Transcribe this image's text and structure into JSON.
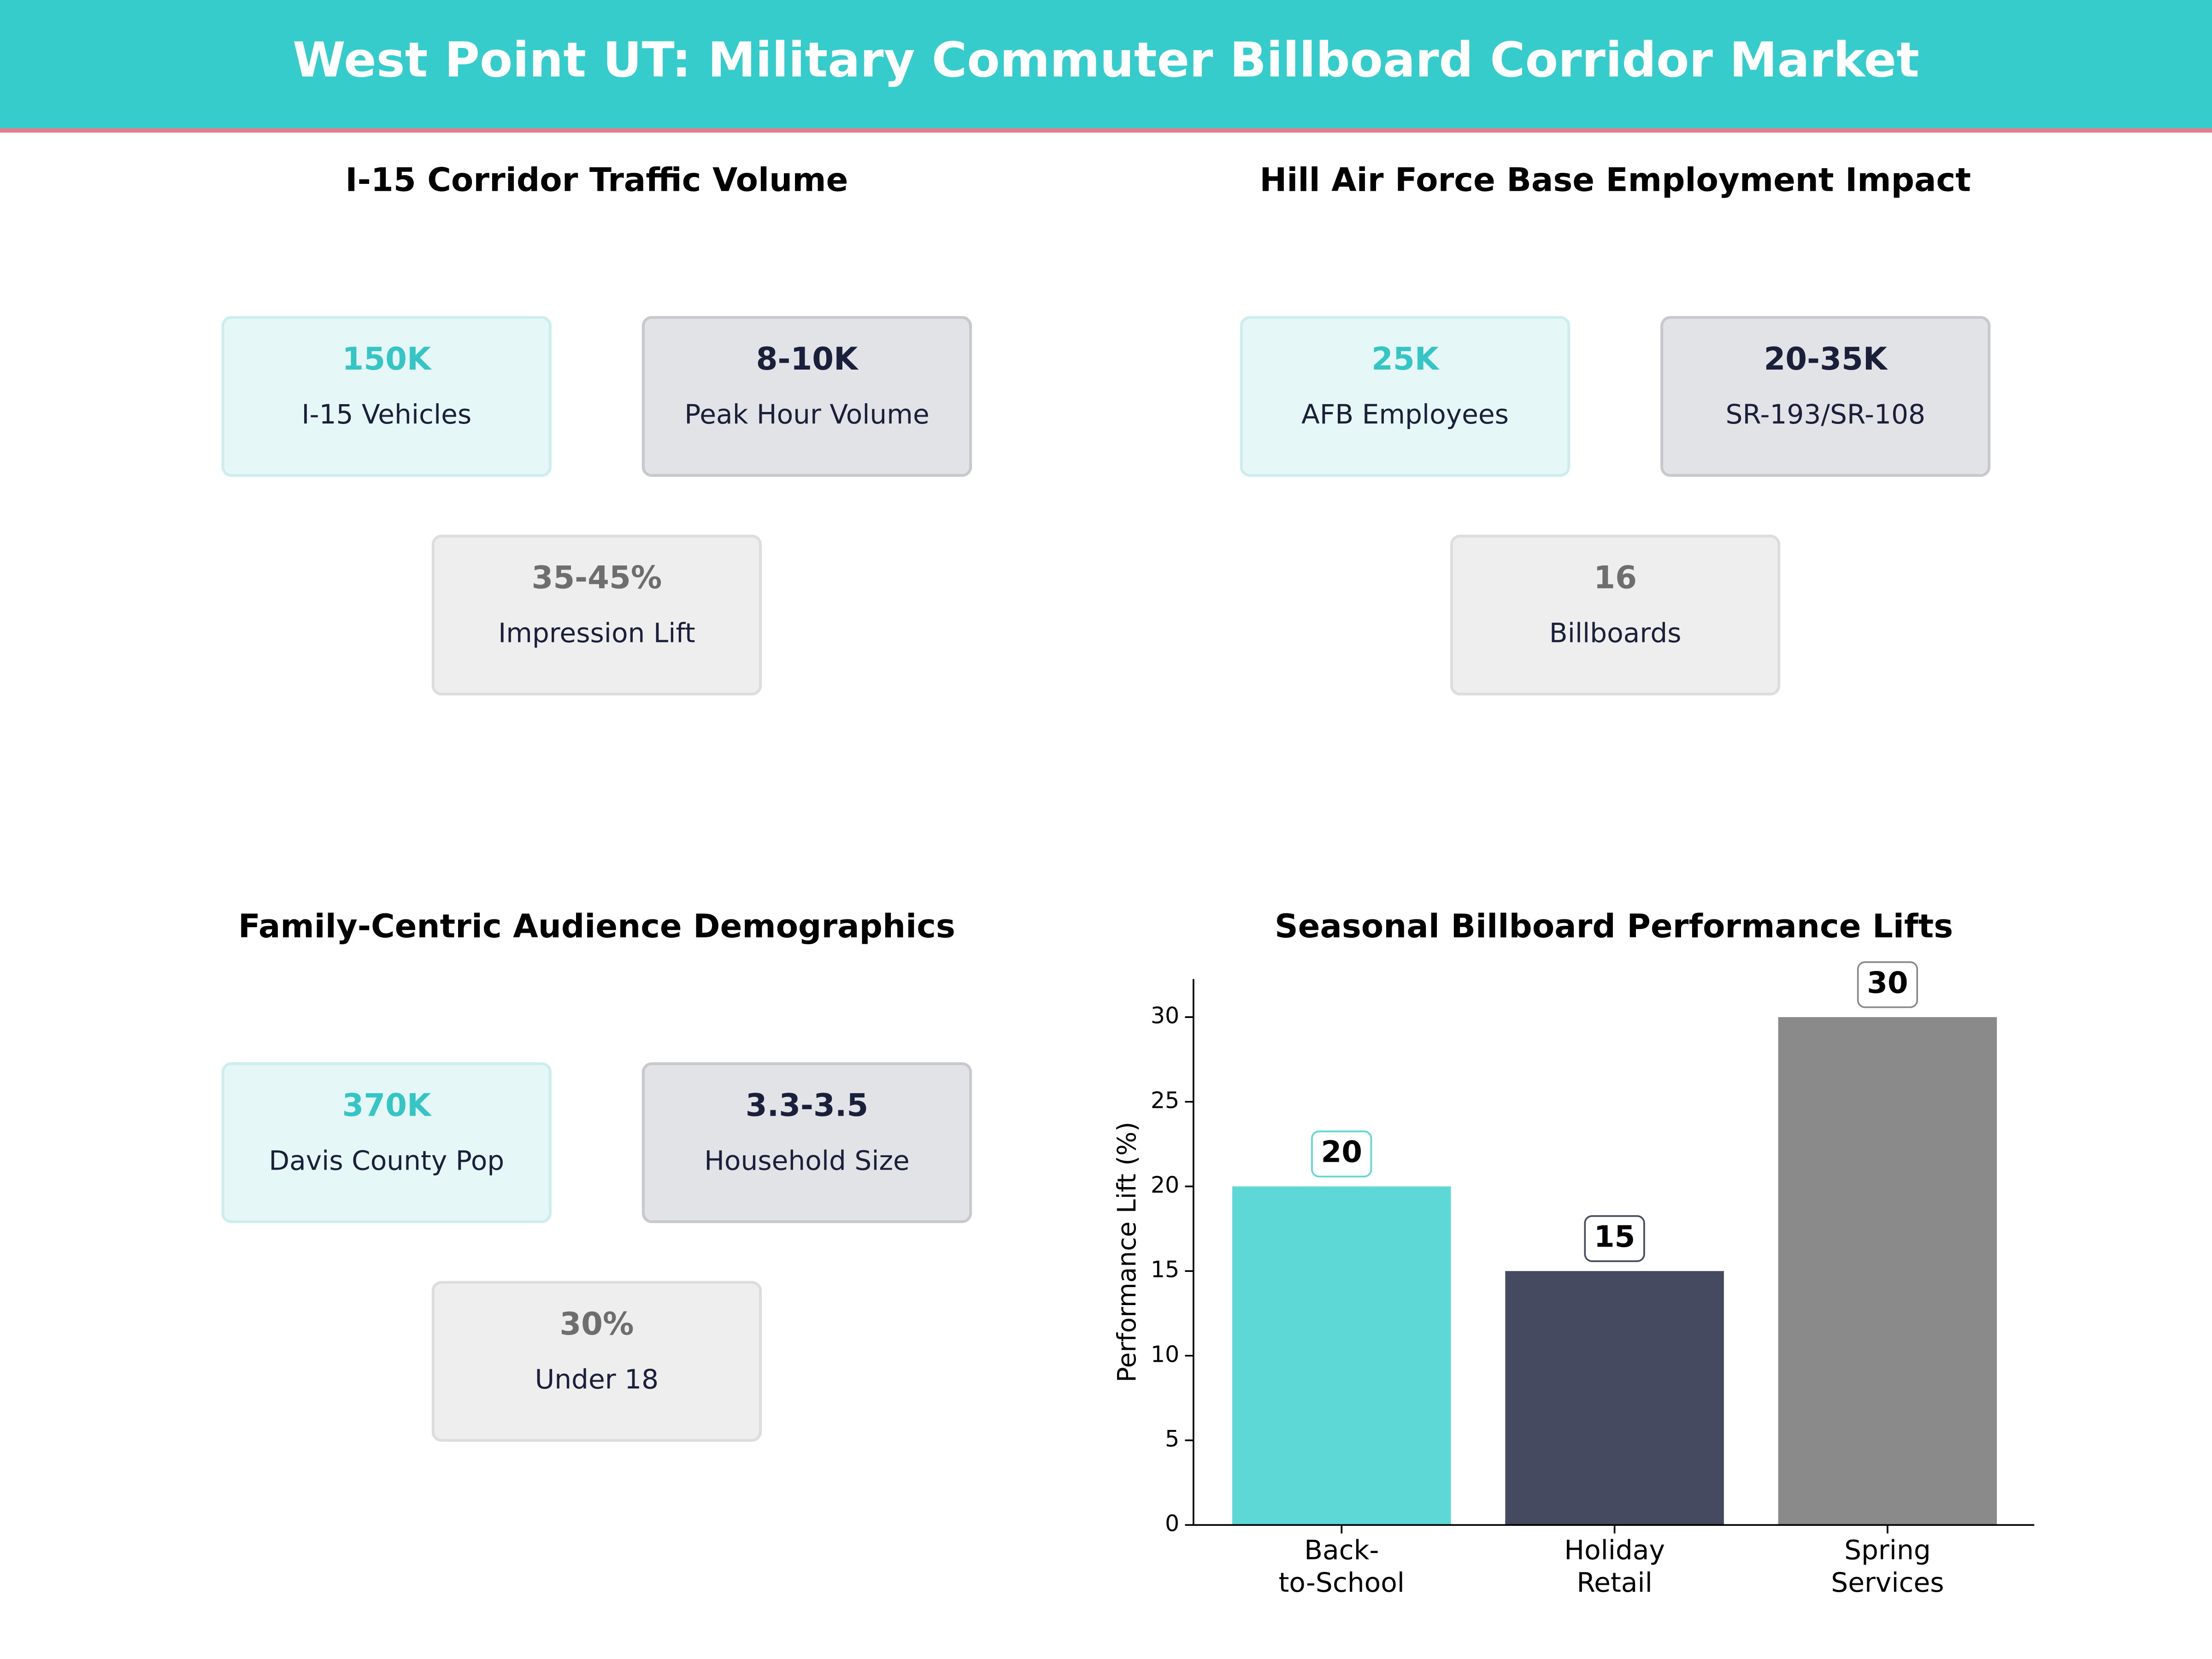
{
  "header": {
    "title": "West Point UT: Military Commuter Billboard Corridor Market"
  },
  "panels": [
    {
      "title": "I-15 Corridor Traffic Volume",
      "cards": [
        {
          "value": "150K",
          "label": "I-15 Vehicles"
        },
        {
          "value": "8-10K",
          "label": "Peak Hour Volume"
        },
        {
          "value": "35-45%",
          "label": "Impression Lift"
        }
      ]
    },
    {
      "title": "Hill Air Force Base Employment Impact",
      "cards": [
        {
          "value": "25K",
          "label": "AFB Employees"
        },
        {
          "value": "20-35K",
          "label": "SR-193/SR-108"
        },
        {
          "value": "16",
          "label": "Billboards"
        }
      ]
    },
    {
      "title": "Family-Centric Audience Demographics",
      "cards": [
        {
          "value": "370K",
          "label": "Davis County Pop"
        },
        {
          "value": "3.3-3.5",
          "label": "Household Size"
        },
        {
          "value": "30%",
          "label": "Under 18"
        }
      ]
    }
  ],
  "chart_data": {
    "type": "bar",
    "title": "Seasonal Billboard Performance Lifts",
    "categories": [
      "Back-\nto-School",
      "Holiday\nRetail",
      "Spring\nServices"
    ],
    "values": [
      20,
      15,
      30
    ],
    "colors": [
      "#5ed8d6",
      "#454a60",
      "#8a8a8a"
    ],
    "ylabel": "Performance Lift (%)",
    "ylim": [
      0,
      32.25
    ],
    "yticks": [
      0,
      5,
      10,
      15,
      20,
      25,
      30
    ]
  }
}
